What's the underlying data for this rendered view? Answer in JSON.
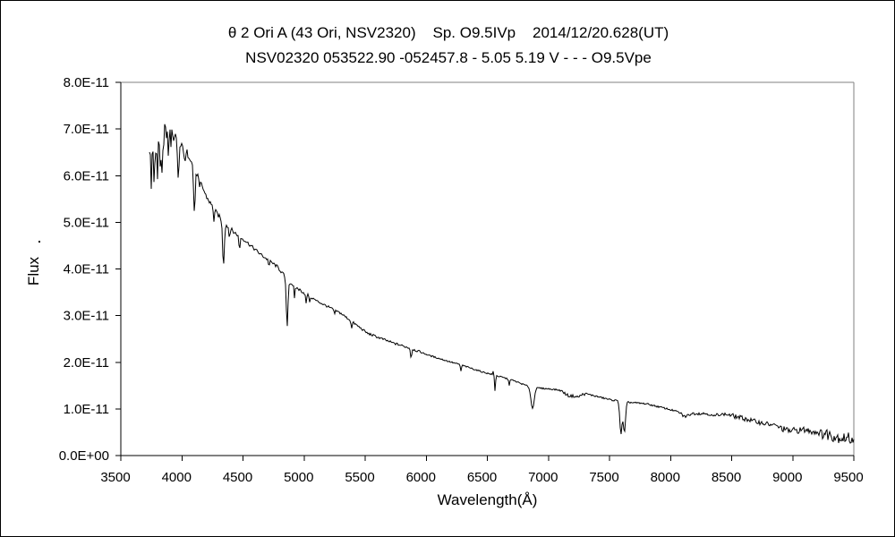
{
  "header": {
    "title_line1": "θ 2 Ori A (43 Ori, NSV2320)    Sp. O9.5IVp    2014/12/20.628(UT)",
    "title_line2": "NSV02320 053522.90 -052457.8 - 5.05 5.19 V - - - O9.5Vpe"
  },
  "colors": {
    "background": "#ffffff",
    "spectrum_line": "#000000",
    "axis": "#000000",
    "plot_box_topright": "#808080",
    "text": "#000000",
    "outer_border": "#000000"
  },
  "chart_data": {
    "type": "line",
    "title": "θ 2 Ori A (43 Ori, NSV2320)  Sp. O9.5IVp  2014/12/20.628(UT)",
    "subtitle": "NSV02320 053522.90 -052457.8 - 5.05 5.19 V - - - O9.5Vpe",
    "xlabel": "Wavelength(Å)",
    "ylabel": "Flux",
    "xlim": [
      3500,
      9500
    ],
    "ylim": [
      0,
      8e-11
    ],
    "grid": false,
    "legend": false,
    "x_ticks": [
      3500,
      4000,
      4500,
      5000,
      5500,
      6000,
      6500,
      7000,
      7500,
      8000,
      8500,
      9000,
      9500
    ],
    "y_ticks": [
      {
        "flux_e11": 0,
        "label": "0.0E+00"
      },
      {
        "flux_e11": 1,
        "label": "1.0E-11"
      },
      {
        "flux_e11": 2,
        "label": "2.0E-11"
      },
      {
        "flux_e11": 3,
        "label": "3.0E-11"
      },
      {
        "flux_e11": 4,
        "label": "4.0E-11"
      },
      {
        "flux_e11": 5,
        "label": "5.0E-11"
      },
      {
        "flux_e11": 6,
        "label": "6.0E-11"
      },
      {
        "flux_e11": 7,
        "label": "7.0E-11"
      },
      {
        "flux_e11": 8,
        "label": "8.0E-11"
      }
    ],
    "flux_unit": 1e-11,
    "wavelength_start": 3734,
    "wavelength_end": 9500,
    "continuum_points_e11": [
      [
        3734,
        6.3
      ],
      [
        3765,
        6.5
      ],
      [
        3800,
        6.55
      ],
      [
        3845,
        6.75
      ],
      [
        3875,
        6.95
      ],
      [
        3915,
        6.85
      ],
      [
        3960,
        6.7
      ],
      [
        4005,
        6.6
      ],
      [
        4070,
        6.4
      ],
      [
        4130,
        6.0
      ],
      [
        4200,
        5.55
      ],
      [
        4270,
        5.25
      ],
      [
        4340,
        5.0
      ],
      [
        4420,
        4.8
      ],
      [
        4520,
        4.6
      ],
      [
        4650,
        4.3
      ],
      [
        4780,
        4.05
      ],
      [
        4880,
        3.72
      ],
      [
        4935,
        3.6
      ],
      [
        5100,
        3.32
      ],
      [
        5300,
        3.05
      ],
      [
        5520,
        2.62
      ],
      [
        5720,
        2.42
      ],
      [
        5870,
        2.3
      ],
      [
        6020,
        2.15
      ],
      [
        6180,
        2.02
      ],
      [
        6300,
        1.93
      ],
      [
        6450,
        1.8
      ],
      [
        6563,
        1.72
      ],
      [
        6700,
        1.62
      ],
      [
        6860,
        1.46
      ],
      [
        7000,
        1.43
      ],
      [
        7150,
        1.39
      ],
      [
        7330,
        1.31
      ],
      [
        7500,
        1.2
      ],
      [
        7620,
        1.15
      ],
      [
        7800,
        1.11
      ],
      [
        7975,
        1.0
      ],
      [
        8100,
        0.91
      ],
      [
        8300,
        0.9
      ],
      [
        8460,
        0.88
      ],
      [
        8590,
        0.8
      ],
      [
        8710,
        0.72
      ],
      [
        8860,
        0.64
      ],
      [
        8960,
        0.53
      ],
      [
        9100,
        0.55
      ],
      [
        9250,
        0.48
      ],
      [
        9400,
        0.38
      ],
      [
        9500,
        0.36
      ]
    ],
    "absorption_lines_center_depth_sigma": [
      [
        3750,
        0.5,
        5
      ],
      [
        3771,
        0.45,
        4
      ],
      [
        3798,
        0.5,
        4
      ],
      [
        3820,
        0.4,
        4
      ],
      [
        3835,
        0.55,
        5
      ],
      [
        3889,
        0.5,
        5
      ],
      [
        3934,
        0.3,
        4
      ],
      [
        3970,
        0.75,
        6
      ],
      [
        4026,
        0.3,
        5
      ],
      [
        4102,
        0.95,
        7
      ],
      [
        4144,
        0.2,
        4
      ],
      [
        4262,
        0.25,
        4
      ],
      [
        4340,
        0.9,
        7
      ],
      [
        4388,
        0.2,
        4
      ],
      [
        4471,
        0.28,
        5
      ],
      [
        4713,
        0.12,
        4
      ],
      [
        4861,
        1.0,
        7
      ],
      [
        4922,
        0.28,
        4
      ],
      [
        5016,
        0.22,
        4
      ],
      [
        5048,
        0.12,
        4
      ],
      [
        5250,
        0.1,
        4
      ],
      [
        5389,
        0.16,
        4
      ],
      [
        5876,
        0.2,
        5
      ],
      [
        6284,
        0.14,
        4
      ],
      [
        6563,
        0.33,
        4
      ],
      [
        6678,
        0.13,
        4
      ],
      [
        6870,
        0.45,
        13
      ],
      [
        7170,
        0.1,
        35
      ],
      [
        7240,
        0.08,
        25
      ],
      [
        7594,
        0.7,
        9
      ],
      [
        7622,
        0.66,
        9
      ],
      [
        8120,
        0.07,
        25
      ],
      [
        8350,
        0.05,
        20
      ]
    ],
    "emission_spikes_center_height_sigma": [
      [
        3862,
        0.28,
        2.5
      ],
      [
        6550,
        0.15,
        2
      ]
    ],
    "noise_segments_from_to_amp_e11": [
      [
        3734,
        3955,
        0.26
      ],
      [
        3955,
        4120,
        0.09
      ],
      [
        4120,
        4450,
        0.05
      ],
      [
        4450,
        5050,
        0.035
      ],
      [
        5050,
        5950,
        0.025
      ],
      [
        5950,
        7100,
        0.015
      ],
      [
        7100,
        7330,
        0.03
      ],
      [
        7330,
        7560,
        0.018
      ],
      [
        7680,
        8080,
        0.018
      ],
      [
        8080,
        8480,
        0.032
      ],
      [
        8480,
        8900,
        0.05
      ],
      [
        8900,
        9240,
        0.07
      ],
      [
        9240,
        9500,
        0.13
      ]
    ]
  }
}
